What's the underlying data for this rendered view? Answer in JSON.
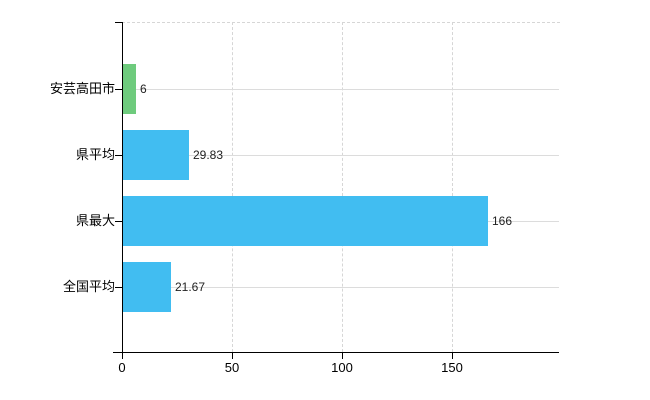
{
  "chart_data": {
    "type": "bar",
    "orientation": "horizontal",
    "title": "",
    "xlabel": "",
    "ylabel": "",
    "categories": [
      "安芸高田市",
      "県平均",
      "県最大",
      "全国平均"
    ],
    "values": [
      6,
      29.83,
      166,
      21.67
    ],
    "value_labels": [
      "6",
      "29.83",
      "166",
      "21.67"
    ],
    "bar_colors": [
      "#6ecb7d",
      "#41bdf1",
      "#41bdf1",
      "#41bdf1"
    ],
    "x_ticks": [
      0,
      50,
      100,
      150
    ],
    "x_tick_labels": [
      "0",
      "50",
      "100",
      "150"
    ],
    "xlim": [
      0,
      199
    ],
    "grid": "horizontal solid light-gray at category centers, vertical dashed at x ticks, dashed top border",
    "legend": "none",
    "colors": {
      "bar_default": "#41bdf1",
      "bar_highlight": "#6ecb7d",
      "axis": "#000000",
      "gridline_solid": "#dcdcdc",
      "gridline_dashed": "#d6d6d6",
      "text": "#000000"
    }
  }
}
